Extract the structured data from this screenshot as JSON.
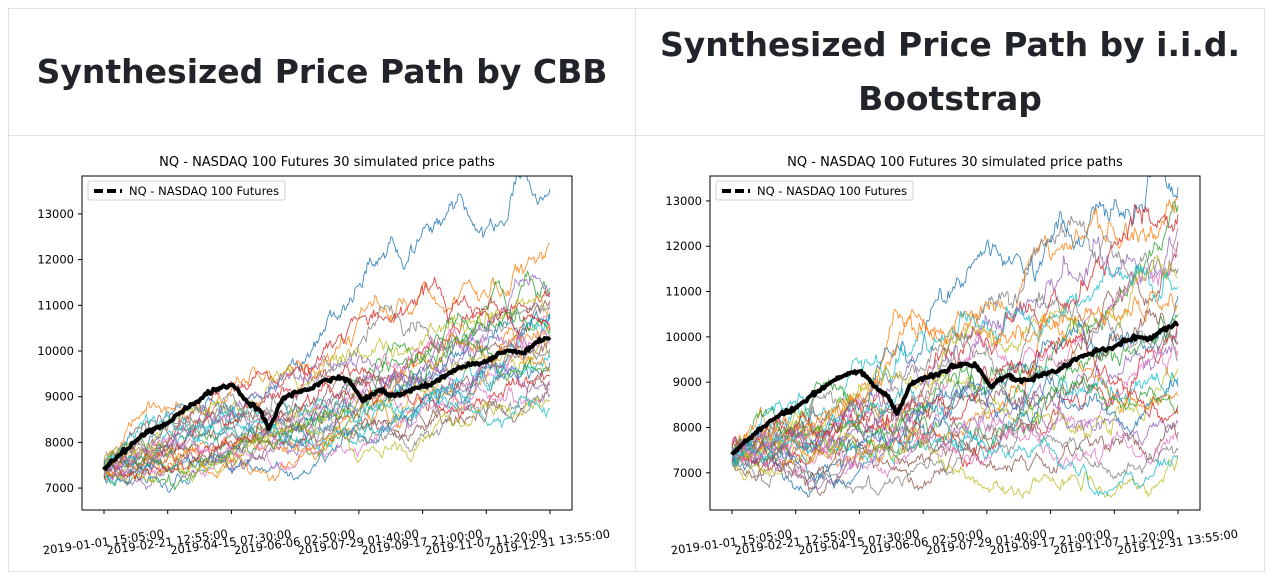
{
  "headers": {
    "left": "Synthesized Price Path by CBB",
    "right": "Synthesized Price Path by i.i.d. Bootstrap"
  },
  "chart_data": [
    {
      "type": "line",
      "title": "NQ - NASDAQ 100 Futures 30 simulated price paths",
      "legend": {
        "label": "NQ - NASDAQ 100 Futures",
        "placement": "top-left"
      },
      "x_ticks": [
        "2019-01-01 15:05:00",
        "2019-02-21 12:55:00",
        "2019-04-15 07:30:00",
        "2019-06-06 02:50:00",
        "2019-07-29 01:40:00",
        "2019-09-17 21:00:00",
        "2019-11-07 11:20:00",
        "2019-12-31 13:55:00"
      ],
      "y_ticks": [
        7000,
        8000,
        9000,
        10000,
        11000,
        12000,
        13000
      ],
      "ylim": [
        6520,
        13830
      ],
      "series_count": 30,
      "series_end_values": [
        13550,
        12350,
        11380,
        11300,
        11200,
        11100,
        11050,
        10950,
        10850,
        10800,
        10700,
        10600,
        10500,
        10450,
        10350,
        10250,
        10150,
        10050,
        9950,
        9850,
        9750,
        9650,
        9550,
        9450,
        9350,
        9250,
        9150,
        9050,
        8900,
        8750
      ],
      "actual": {
        "name": "NQ - NASDAQ 100 Futures",
        "x_frac": [
          0,
          0.02,
          0.05,
          0.08,
          0.11,
          0.14,
          0.17,
          0.2,
          0.23,
          0.26,
          0.29,
          0.32,
          0.35,
          0.37,
          0.4,
          0.43,
          0.46,
          0.49,
          0.52,
          0.55,
          0.58,
          0.6,
          0.62,
          0.64,
          0.67,
          0.7,
          0.73,
          0.76,
          0.79,
          0.82,
          0.85,
          0.88,
          0.91,
          0.94,
          0.97,
          1.0
        ],
        "values": [
          7400,
          7600,
          7850,
          8100,
          8300,
          8400,
          8650,
          8850,
          9050,
          9200,
          9250,
          8900,
          8700,
          8300,
          8950,
          9100,
          9150,
          9350,
          9400,
          9350,
          8900,
          9050,
          9150,
          9050,
          9050,
          9200,
          9250,
          9450,
          9600,
          9700,
          9750,
          9900,
          10000,
          9950,
          10200,
          10300
        ]
      }
    },
    {
      "type": "line",
      "title": "NQ - NASDAQ 100 Futures 30 simulated price paths",
      "legend": {
        "label": "NQ - NASDAQ 100 Futures",
        "placement": "top-left"
      },
      "x_ticks": [
        "2019-01-01 15:05:00",
        "2019-02-21 12:55:00",
        "2019-04-15 07:30:00",
        "2019-06-06 02:50:00",
        "2019-07-29 01:40:00",
        "2019-09-17 21:00:00",
        "2019-11-07 11:20:00",
        "2019-12-31 13:55:00"
      ],
      "y_ticks": [
        7000,
        8000,
        9000,
        10000,
        11000,
        12000,
        13000
      ],
      "ylim": [
        6180,
        13550
      ],
      "series_count": 30,
      "series_end_values": [
        13300,
        13100,
        12900,
        12700,
        12400,
        12100,
        11800,
        11500,
        11300,
        11100,
        10900,
        10700,
        10500,
        10300,
        10100,
        9900,
        9700,
        9500,
        9300,
        9100,
        8900,
        8700,
        8500,
        8300,
        8100,
        7900,
        7700,
        7500,
        7400,
        7300
      ],
      "actual": {
        "name": "NQ - NASDAQ 100 Futures",
        "x_frac": [
          0,
          0.02,
          0.05,
          0.08,
          0.11,
          0.14,
          0.17,
          0.2,
          0.23,
          0.26,
          0.29,
          0.32,
          0.35,
          0.37,
          0.4,
          0.43,
          0.46,
          0.49,
          0.52,
          0.55,
          0.58,
          0.6,
          0.62,
          0.64,
          0.67,
          0.7,
          0.73,
          0.76,
          0.79,
          0.82,
          0.85,
          0.88,
          0.91,
          0.94,
          0.97,
          1.0
        ],
        "values": [
          7400,
          7600,
          7850,
          8100,
          8300,
          8400,
          8650,
          8850,
          9050,
          9200,
          9250,
          8900,
          8700,
          8300,
          8950,
          9100,
          9150,
          9350,
          9400,
          9350,
          8900,
          9050,
          9150,
          9050,
          9050,
          9200,
          9250,
          9450,
          9600,
          9700,
          9750,
          9900,
          10000,
          9950,
          10200,
          10300
        ]
      }
    }
  ]
}
